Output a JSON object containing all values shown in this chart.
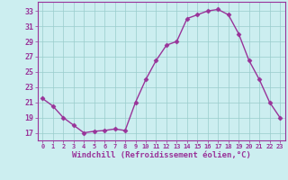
{
  "x": [
    0,
    1,
    2,
    3,
    4,
    5,
    6,
    7,
    8,
    9,
    10,
    11,
    12,
    13,
    14,
    15,
    16,
    17,
    18,
    19,
    20,
    21,
    22,
    23
  ],
  "y": [
    21.5,
    20.5,
    19.0,
    18.0,
    17.0,
    17.2,
    17.3,
    17.5,
    17.3,
    21.0,
    24.0,
    26.5,
    28.5,
    29.0,
    32.0,
    32.5,
    33.0,
    33.2,
    32.5,
    30.0,
    26.5,
    24.0,
    21.0,
    19.0
  ],
  "line_color": "#993399",
  "marker": "D",
  "markersize": 2.5,
  "linewidth": 1.0,
  "bg_color": "#cceef0",
  "grid_color": "#99cccc",
  "xlabel": "Windchill (Refroidissement éolien,°C)",
  "xlabel_fontsize": 6.5,
  "yticks": [
    17,
    19,
    21,
    23,
    25,
    27,
    29,
    31,
    33
  ],
  "xticks": [
    0,
    1,
    2,
    3,
    4,
    5,
    6,
    7,
    8,
    9,
    10,
    11,
    12,
    13,
    14,
    15,
    16,
    17,
    18,
    19,
    20,
    21,
    22,
    23
  ],
  "ylim": [
    16.0,
    34.2
  ],
  "xlim": [
    -0.5,
    23.5
  ],
  "ytick_fontsize": 6,
  "xtick_fontsize": 5,
  "tick_color": "#993399",
  "axis_color": "#993399"
}
